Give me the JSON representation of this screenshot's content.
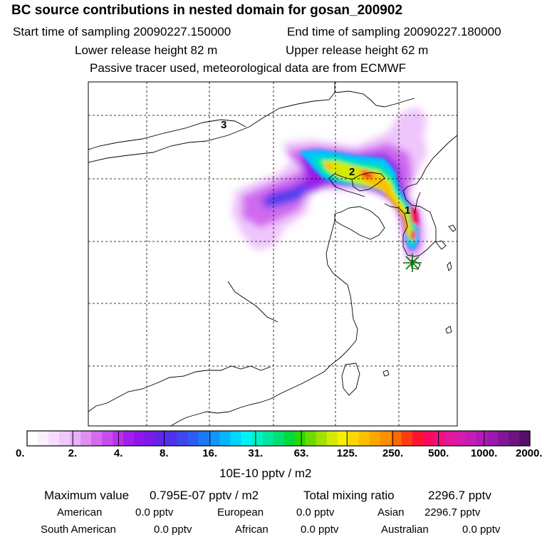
{
  "header": {
    "title": "BC  source contributions in nested domain for gosan_200902",
    "start_time": "Start time of sampling 20090227.150000",
    "end_time": "End time of sampling 20090227.180000",
    "lower_height": "Lower release height   82 m",
    "upper_height": "Upper release height   62 m",
    "note": "Passive tracer used, meteorological data are from ECMWF"
  },
  "map": {
    "labels": [
      "3",
      "2",
      "1"
    ]
  },
  "colorbar": {
    "ticks": [
      "0.",
      "2.",
      "4.",
      "8.",
      "16.",
      "31.",
      "63.",
      "125.",
      "250.",
      "500.",
      "1000.",
      "2000."
    ],
    "unit": "10E-10 pptv / m2",
    "colors": [
      "#ffffff",
      "#fbeefe",
      "#f7ddfd",
      "#f0c8fb",
      "#e9b0f8",
      "#df8ef4",
      "#d46af0",
      "#c84ced",
      "#b832ea",
      "#a31ee8",
      "#8f16ea",
      "#7a1be8",
      "#6424e8",
      "#4f32ea",
      "#3c47ee",
      "#2c5df2",
      "#1b78f6",
      "#0f96fa",
      "#06b6fd",
      "#00d6fe",
      "#00f2f6",
      "#00f0c8",
      "#00e8a0",
      "#00e070",
      "#00d83e",
      "#2ad800",
      "#6adc00",
      "#a0e200",
      "#d4ea00",
      "#f6f000",
      "#fcd800",
      "#fcc000",
      "#fca800",
      "#fc9000",
      "#fc6800",
      "#fc3a14",
      "#fc1430",
      "#f80a5a",
      "#f0107c",
      "#e4169a",
      "#d61aae",
      "#c41cb6",
      "#b01ab6",
      "#9a18ac",
      "#841696",
      "#6e1480",
      "#56106a"
    ]
  },
  "summary": {
    "max_label": "Maximum value",
    "max_value": "0.795E-07 pptv / m2",
    "total_label": "Total mixing ratio",
    "total_value": "2296.7 pptv",
    "regions": [
      {
        "name": "American",
        "value": "0.0 pptv"
      },
      {
        "name": "European",
        "value": "0.0 pptv"
      },
      {
        "name": "Asian",
        "value": "2296.7 pptv"
      },
      {
        "name": "South American",
        "value": "0.0 pptv"
      },
      {
        "name": "African",
        "value": "0.0 pptv"
      },
      {
        "name": "Australian",
        "value": "0.0 pptv"
      }
    ]
  }
}
